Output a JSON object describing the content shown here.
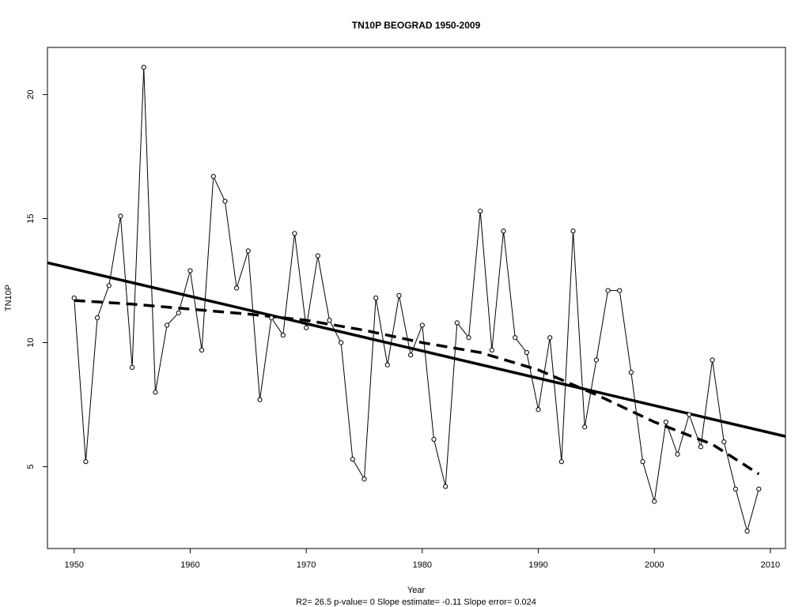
{
  "chart_data": {
    "type": "line",
    "title": "TN10P   BEOGRAD 1950-2009",
    "xlabel": "Year",
    "ylabel": "TN10P",
    "footer": "R2= 26.5  p-value= 0  Slope estimate= -0.11  Slope error= 0.024",
    "xlim": [
      1947.7,
      2011.3
    ],
    "ylim": [
      1.7,
      21.9
    ],
    "x_ticks": [
      1950,
      1960,
      1970,
      1980,
      1990,
      2000,
      2010
    ],
    "y_ticks": [
      5,
      10,
      15,
      20
    ],
    "grid": false,
    "x": [
      1950,
      1951,
      1952,
      1953,
      1954,
      1955,
      1956,
      1957,
      1958,
      1959,
      1960,
      1961,
      1962,
      1963,
      1964,
      1965,
      1966,
      1967,
      1968,
      1969,
      1970,
      1971,
      1972,
      1973,
      1974,
      1975,
      1976,
      1977,
      1978,
      1979,
      1980,
      1981,
      1982,
      1983,
      1984,
      1985,
      1986,
      1987,
      1988,
      1989,
      1990,
      1991,
      1992,
      1993,
      1994,
      1995,
      1996,
      1997,
      1998,
      1999,
      2000,
      2001,
      2002,
      2003,
      2004,
      2005,
      2006,
      2007,
      2008,
      2009
    ],
    "series": [
      {
        "style": "line-with-points",
        "color": "#000000",
        "values": [
          11.8,
          5.2,
          11.0,
          12.3,
          15.1,
          9.0,
          21.1,
          8.0,
          10.7,
          11.2,
          12.9,
          9.7,
          16.7,
          15.7,
          12.2,
          13.7,
          7.7,
          11.0,
          10.3,
          14.4,
          10.6,
          13.5,
          10.9,
          10.0,
          5.3,
          4.5,
          11.8,
          9.1,
          11.9,
          9.5,
          10.7,
          6.1,
          4.2,
          10.8,
          10.2,
          15.3,
          9.7,
          14.5,
          10.2,
          9.6,
          7.3,
          10.2,
          5.2,
          14.5,
          6.6,
          9.3,
          12.1,
          12.1,
          8.8,
          5.2,
          3.6,
          6.8,
          5.5,
          7.1,
          5.8,
          9.3,
          6.0,
          4.1,
          2.4,
          4.1
        ]
      },
      {
        "style": "thick-solid",
        "color": "#000000",
        "x": [
          1947.7,
          2011.3
        ],
        "values": [
          13.22,
          6.22
        ]
      },
      {
        "style": "thick-dashed",
        "color": "#000000",
        "x": [
          1950,
          1955,
          1960,
          1965,
          1970,
          1975,
          1980,
          1985,
          1990,
          1995,
          2000,
          2005,
          2009
        ],
        "values": [
          11.7,
          11.55,
          11.35,
          11.15,
          10.9,
          10.5,
          10.0,
          9.6,
          8.9,
          7.9,
          6.8,
          5.9,
          4.7
        ]
      }
    ]
  }
}
